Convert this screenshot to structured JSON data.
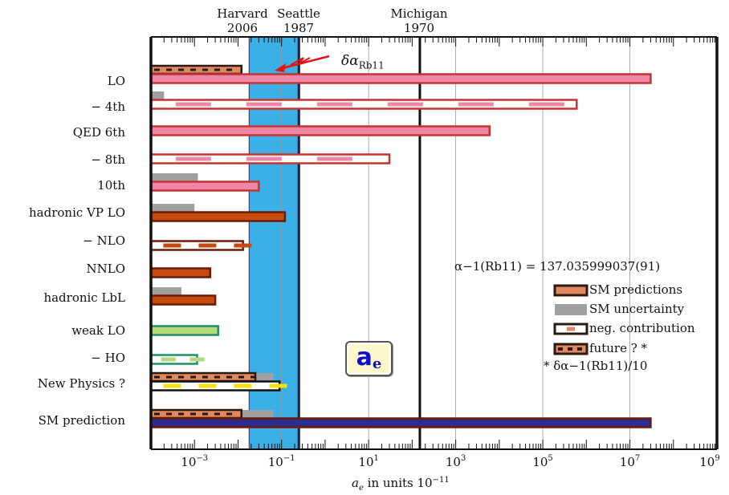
{
  "chart_data": {
    "type": "bar",
    "x_scale": "log",
    "x_range": [
      0.0001,
      1000000000
    ],
    "x_ticks": [
      {
        "base": "10",
        "exp": "−3",
        "value": 0.001
      },
      {
        "base": "10",
        "exp": "−1",
        "value": 0.1
      },
      {
        "base": "10",
        "exp": "1",
        "value": 10
      },
      {
        "base": "10",
        "exp": "3",
        "value": 1000
      },
      {
        "base": "10",
        "exp": "5",
        "value": 100000
      },
      {
        "base": "10",
        "exp": "7",
        "value": 10000000
      },
      {
        "base": "10",
        "exp": "9",
        "value": 1000000000
      }
    ],
    "xlabel": {
      "symbol": "a",
      "subscript": "e",
      "text": " in units 10",
      "exp": "−11"
    },
    "experiments": [
      {
        "lab": "Harvard",
        "year": "2006"
      },
      {
        "lab": "Seattle",
        "year": "1987"
      },
      {
        "lab": "Michigan",
        "year": "1970",
        "value": 150
      }
    ],
    "experiment_band": [
      0.018,
      0.25
    ],
    "rows": [
      {
        "label": "LO",
        "value": 30000000,
        "style": "pink",
        "uncertainty": null,
        "future": 0.012
      },
      {
        "label": "− 4th",
        "value": 600000,
        "style": "neg-pink",
        "uncertainty": 0.0002,
        "future": null
      },
      {
        "label": "QED 6th",
        "value": 6000,
        "style": "pink",
        "uncertainty": null,
        "future": null
      },
      {
        "label": "− 8th",
        "value": 30,
        "style": "neg-pink",
        "uncertainty": null,
        "future": null
      },
      {
        "label": "10th",
        "value": 0.03,
        "style": "pink",
        "uncertainty": 0.0012,
        "future": null
      },
      {
        "label": "hadronic VP LO",
        "value": 0.12,
        "style": "brown",
        "uncertainty": 0.001,
        "future": null
      },
      {
        "label": "− NLO",
        "value": 0.013,
        "style": "neg-brown",
        "uncertainty": null,
        "future": null
      },
      {
        "label": "NNLO",
        "value": 0.0023,
        "style": "brown",
        "uncertainty": null,
        "future": null
      },
      {
        "label": "hadronic LbL",
        "value": 0.003,
        "style": "brown",
        "uncertainty": 0.0005,
        "future": null
      },
      {
        "label": "weak LO",
        "value": 0.0035,
        "style": "green",
        "uncertainty": null,
        "future": null
      },
      {
        "label": "− HO",
        "value": 0.00115,
        "style": "neg-green",
        "uncertainty": null,
        "future": null
      },
      {
        "label": "New Physics ?",
        "value": 0.09,
        "style": "yellow",
        "uncertainty": 0.065,
        "future": 0.025
      },
      {
        "label": "SM prediction",
        "value": 30000000,
        "style": "navy",
        "uncertainty": 0.065,
        "future": 0.012
      }
    ],
    "annotations": {
      "delta_alpha": {
        "symbol": "δα",
        "subscript": "Rb11"
      },
      "alpha_value": "α−1(Rb11) = 137.035999037(91)",
      "ae_badge": {
        "symbol": "a",
        "subscript": "e"
      },
      "footnote": "* δα−1(Rb11)/10"
    },
    "legend": {
      "position": "right",
      "items": [
        {
          "label": "SM predictions",
          "kind": "sm"
        },
        {
          "label": "SM uncertainty",
          "kind": "unc"
        },
        {
          "label": "neg. contribution",
          "kind": "neg"
        },
        {
          "label": "future ? *",
          "kind": "future"
        }
      ]
    },
    "colors": {
      "band": "#3ab0e6",
      "pink": "#ee86a8",
      "pink_edge": "#c4342f",
      "brown": "#c44a10",
      "brown_edge": "#6e1805",
      "green": "#b5d978",
      "green_edge": "#1f8f6a",
      "navy": "#2b2c8f",
      "grey": "#a0a0a0",
      "future_fill": "#e08860",
      "future_edge": "#2a1a10",
      "arrow": "#e81010"
    }
  }
}
